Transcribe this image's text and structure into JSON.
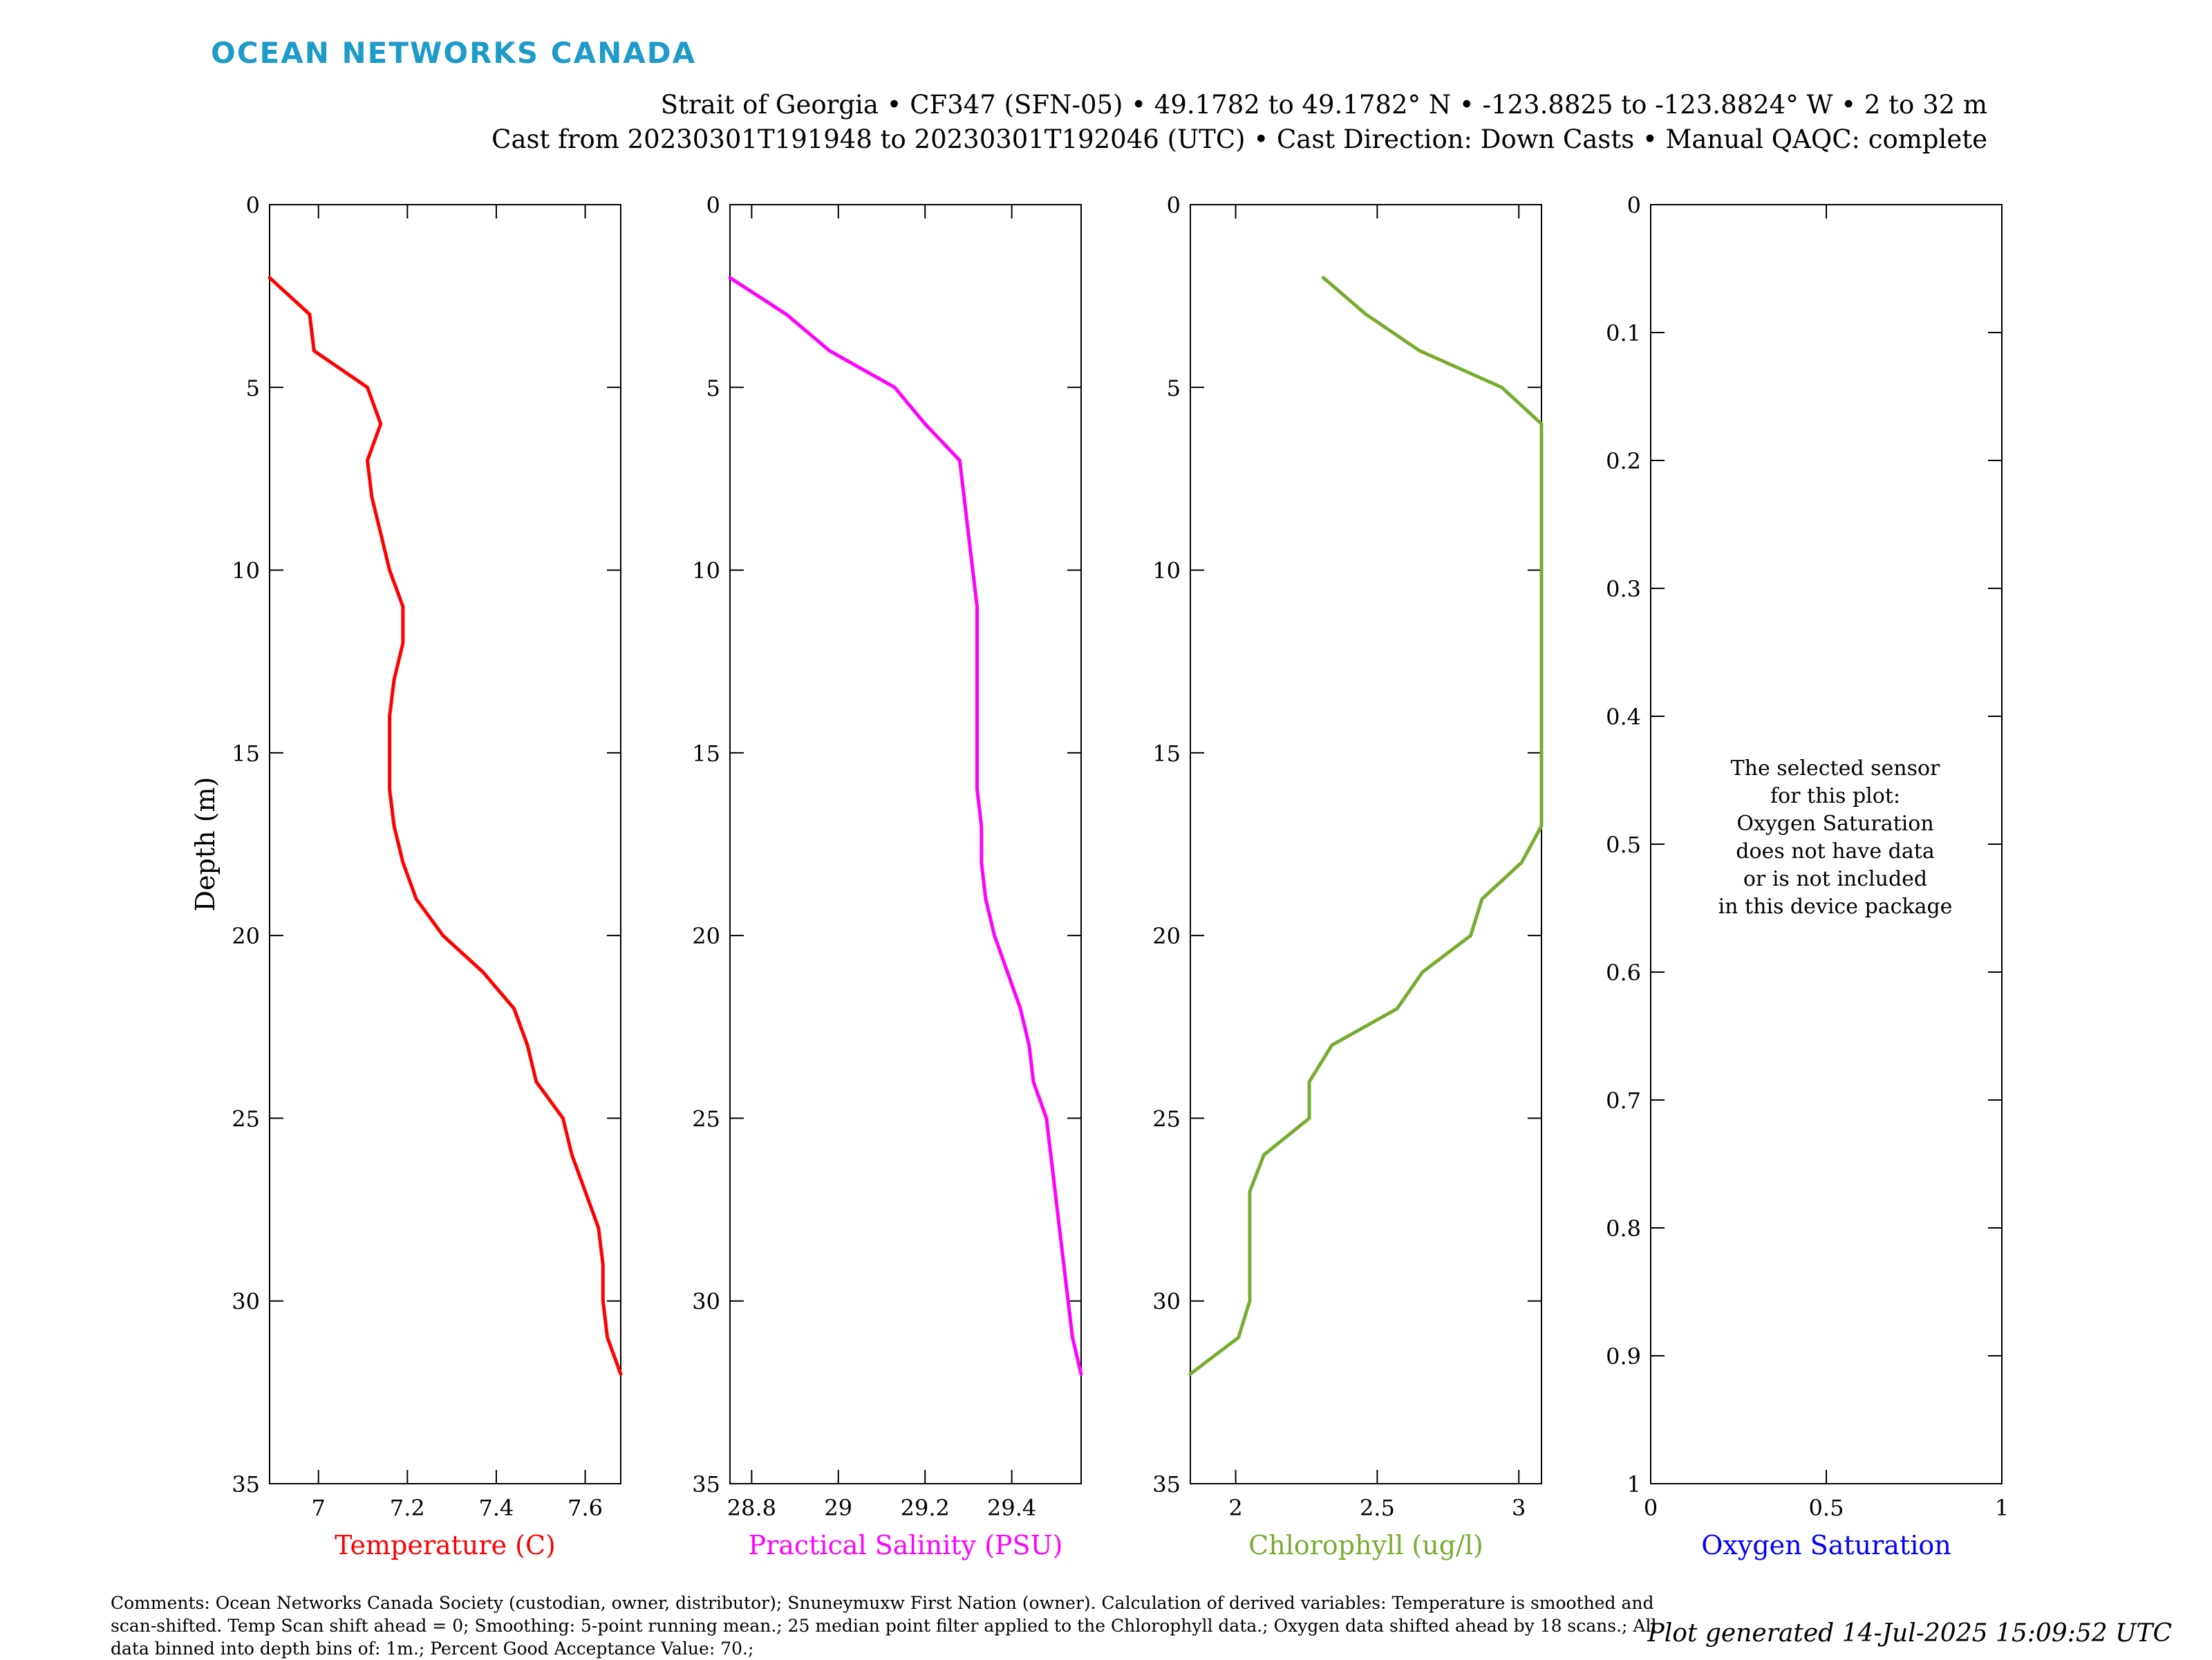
{
  "header": {
    "brand": "OCEAN NETWORKS CANADA",
    "line1": "Strait of Georgia • CF347 (SFN-05) • 49.1782 to 49.1782° N • -123.8825 to -123.8824° W • 2 to 32 m",
    "line2": "Cast from 20230301T191948 to 20230301T192046 (UTC) • Cast Direction: Down Casts • Manual QAQC: complete"
  },
  "footer": {
    "comments": "Comments: Ocean Networks Canada Society (custodian, owner, distributor); Snuneymuxw First Nation (owner). Calculation of derived variables: Temperature is smoothed and scan-shifted. Temp Scan shift ahead = 0; Smoothing: 5-point running mean.; 25 median point filter applied to the Chlorophyll data.; Oxygen data shifted ahead by 18 scans.; All data binned into depth bins of: 1m.; Percent Good Acceptance Value: 70.;",
    "generated": "Plot generated 14-Jul-2025 15:09:52 UTC"
  },
  "nodata_message": {
    "lines": [
      "The selected sensor",
      "for this plot:",
      "Oxygen Saturation",
      "does not have data",
      "or is not included",
      "in this device package"
    ]
  },
  "chart_data": [
    {
      "type": "line",
      "xlabel": "Temperature (C)",
      "ylabel": "Depth (m)",
      "color": "#ff0000",
      "xlim": [
        6.89,
        7.68
      ],
      "ylim": [
        0,
        35
      ],
      "y_reversed": true,
      "xticks": [
        7,
        7.2,
        7.4,
        7.6
      ],
      "xtick_labels": [
        "7",
        "7.2",
        "7.4",
        "7.6"
      ],
      "yticks": [
        0,
        5,
        10,
        15,
        20,
        25,
        30,
        35
      ],
      "ytick_labels": [
        "0",
        "5",
        "10",
        "15",
        "20",
        "25",
        "30",
        "35"
      ],
      "series": [
        {
          "depth": [
            2,
            3,
            4,
            5,
            6,
            7,
            8,
            9,
            10,
            11,
            12,
            13,
            14,
            15,
            16,
            17,
            18,
            19,
            20,
            21,
            22,
            23,
            24,
            25,
            26,
            27,
            28,
            29,
            30,
            31,
            32
          ],
          "values": [
            6.89,
            6.98,
            6.99,
            7.11,
            7.14,
            7.11,
            7.12,
            7.14,
            7.16,
            7.19,
            7.19,
            7.17,
            7.16,
            7.16,
            7.16,
            7.17,
            7.19,
            7.22,
            7.28,
            7.37,
            7.44,
            7.47,
            7.49,
            7.55,
            7.57,
            7.6,
            7.63,
            7.64,
            7.64,
            7.65,
            7.68
          ]
        }
      ]
    },
    {
      "type": "line",
      "xlabel": "Practical Salinity (PSU)",
      "color": "#ff00ff",
      "xlim": [
        28.75,
        29.56
      ],
      "ylim": [
        0,
        35
      ],
      "y_reversed": true,
      "xticks": [
        28.8,
        29,
        29.2,
        29.4
      ],
      "xtick_labels": [
        "28.8",
        "29",
        "29.2",
        "29.4"
      ],
      "yticks": [
        0,
        5,
        10,
        15,
        20,
        25,
        30,
        35
      ],
      "ytick_labels": [
        "0",
        "5",
        "10",
        "15",
        "20",
        "25",
        "30",
        "35"
      ],
      "series": [
        {
          "depth": [
            2,
            3,
            4,
            5,
            6,
            7,
            8,
            9,
            10,
            11,
            12,
            13,
            14,
            15,
            16,
            17,
            18,
            19,
            20,
            21,
            22,
            23,
            24,
            25,
            26,
            27,
            28,
            29,
            30,
            31,
            32
          ],
          "values": [
            28.75,
            28.88,
            28.98,
            29.13,
            29.2,
            29.28,
            29.29,
            29.3,
            29.31,
            29.32,
            29.32,
            29.32,
            29.32,
            29.32,
            29.32,
            29.33,
            29.33,
            29.34,
            29.36,
            29.39,
            29.42,
            29.44,
            29.45,
            29.48,
            29.49,
            29.5,
            29.51,
            29.52,
            29.53,
            29.54,
            29.56
          ]
        }
      ]
    },
    {
      "type": "line",
      "xlabel": "Chlorophyll (ug/l)",
      "color": "#77ac30",
      "xlim": [
        1.84,
        3.08
      ],
      "ylim": [
        0,
        35
      ],
      "y_reversed": true,
      "xticks": [
        2,
        2.5,
        3
      ],
      "xtick_labels": [
        "2",
        "2.5",
        "3"
      ],
      "yticks": [
        0,
        5,
        10,
        15,
        20,
        25,
        30,
        35
      ],
      "ytick_labels": [
        "0",
        "5",
        "10",
        "15",
        "20",
        "25",
        "30",
        "35"
      ],
      "series": [
        {
          "depth": [
            2,
            3,
            4,
            5,
            6,
            7,
            8,
            9,
            10,
            11,
            12,
            13,
            14,
            15,
            16,
            17,
            18,
            19,
            20,
            21,
            22,
            23,
            24,
            25,
            26,
            27,
            28,
            29,
            30,
            31,
            32
          ],
          "values": [
            2.31,
            2.46,
            2.65,
            2.94,
            3.08,
            3.08,
            3.08,
            3.08,
            3.08,
            3.08,
            3.08,
            3.08,
            3.08,
            3.08,
            3.08,
            3.08,
            3.01,
            2.87,
            2.83,
            2.66,
            2.57,
            2.34,
            2.26,
            2.26,
            2.1,
            2.05,
            2.05,
            2.05,
            2.05,
            2.01,
            1.84
          ]
        }
      ]
    },
    {
      "type": "line",
      "xlabel": "Oxygen Saturation",
      "color": "#0000ff",
      "xlim": [
        0,
        1
      ],
      "ylim": [
        0,
        1
      ],
      "y_reversed": true,
      "xticks": [
        0,
        0.5,
        1
      ],
      "xtick_labels": [
        "0",
        "0.5",
        "1"
      ],
      "yticks": [
        0,
        0.1,
        0.2,
        0.3,
        0.4,
        0.5,
        0.6,
        0.7,
        0.8,
        0.9,
        1
      ],
      "ytick_labels": [
        "0",
        "0.1",
        "0.2",
        "0.3",
        "0.4",
        "0.5",
        "0.6",
        "0.7",
        "0.8",
        "0.9",
        "1"
      ],
      "series": []
    }
  ]
}
